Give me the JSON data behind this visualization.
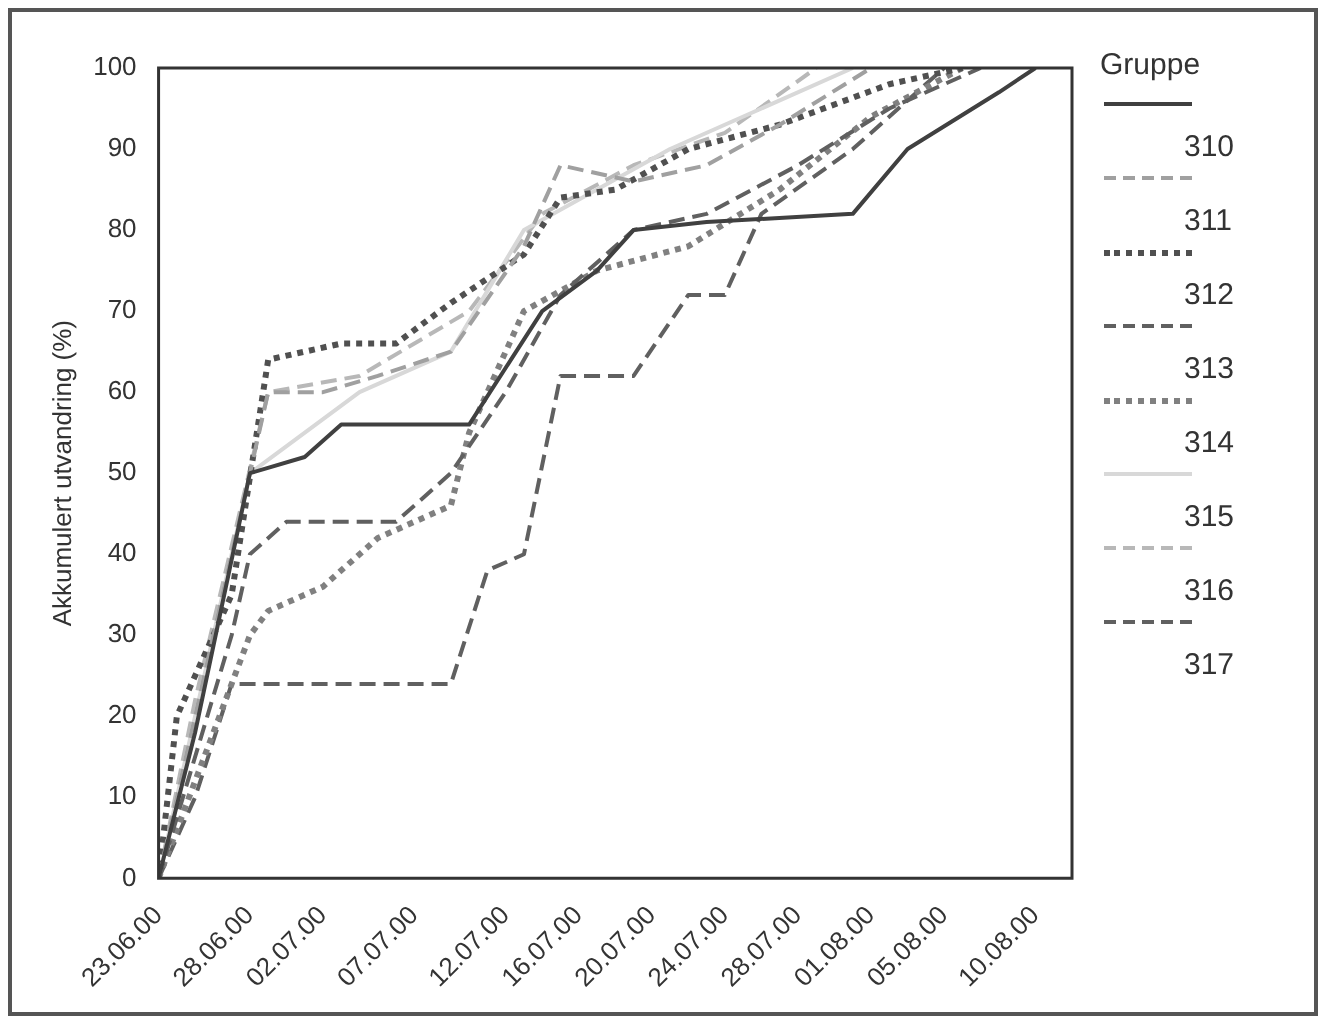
{
  "chart_data": {
    "type": "line",
    "ylabel": "Akkumulert utvandring (%)",
    "legend_title": "Gruppe",
    "legend": "right",
    "grid": false,
    "xlim": [
      "2000-06-23",
      "2000-08-12"
    ],
    "xticks": [
      {
        "value": "2000-06-23",
        "label": "23.06.00"
      },
      {
        "value": "2000-06-28",
        "label": "28.06.00"
      },
      {
        "value": "2000-07-02",
        "label": "02.07.00"
      },
      {
        "value": "2000-07-07",
        "label": "07.07.00"
      },
      {
        "value": "2000-07-12",
        "label": "12.07.00"
      },
      {
        "value": "2000-07-16",
        "label": "16.07.00"
      },
      {
        "value": "2000-07-20",
        "label": "20.07.00"
      },
      {
        "value": "2000-07-24",
        "label": "24.07.00"
      },
      {
        "value": "2000-07-28",
        "label": "28.07.00"
      },
      {
        "value": "2000-08-01",
        "label": "01.08.00"
      },
      {
        "value": "2000-08-05",
        "label": "05.08.00"
      },
      {
        "value": "2000-08-10",
        "label": "10.08.00"
      }
    ],
    "ylim": [
      0,
      100
    ],
    "yticks": [
      0,
      10,
      20,
      30,
      40,
      50,
      60,
      70,
      80,
      90,
      100
    ],
    "series": [
      {
        "name": "310",
        "color": "#404040",
        "line_style": "solid",
        "x": [
          "2000-06-23",
          "2000-06-25",
          "2000-06-28",
          "2000-07-01",
          "2000-07-03",
          "2000-07-10",
          "2000-07-14",
          "2000-07-17",
          "2000-07-19",
          "2000-07-23",
          "2000-07-31",
          "2000-08-03",
          "2000-08-08",
          "2000-08-10"
        ],
        "values": [
          0,
          18,
          50,
          52,
          56,
          56,
          70,
          75,
          80,
          81,
          82,
          90,
          97,
          100
        ]
      },
      {
        "name": "311",
        "color": "#a0a0a0",
        "line_style": "dashed",
        "x": [
          "2000-06-23",
          "2000-06-29",
          "2000-07-02",
          "2000-07-05",
          "2000-07-09",
          "2000-07-13",
          "2000-07-15",
          "2000-07-19",
          "2000-07-23",
          "2000-07-27",
          "2000-08-01"
        ],
        "values": [
          0,
          60,
          60,
          62,
          65,
          78,
          88,
          86,
          88,
          93,
          100
        ]
      },
      {
        "name": "312",
        "color": "#505050",
        "line_style": "dotted",
        "x": [
          "2000-06-23",
          "2000-06-24",
          "2000-06-27",
          "2000-06-29",
          "2000-07-03",
          "2000-07-06",
          "2000-07-09",
          "2000-07-13",
          "2000-07-15",
          "2000-07-18",
          "2000-07-22",
          "2000-07-27",
          "2000-08-02",
          "2000-08-06"
        ],
        "values": [
          0,
          20,
          35,
          64,
          66,
          66,
          71,
          77,
          84,
          85,
          90,
          93,
          98,
          100
        ]
      },
      {
        "name": "313",
        "color": "#606060",
        "line_style": "dashed",
        "x": [
          "2000-06-23",
          "2000-06-27",
          "2000-06-28",
          "2000-06-30",
          "2000-07-06",
          "2000-07-09",
          "2000-07-12",
          "2000-07-15",
          "2000-07-19",
          "2000-07-23",
          "2000-07-28",
          "2000-08-02",
          "2000-08-07"
        ],
        "values": [
          0,
          30,
          40,
          44,
          44,
          50,
          60,
          72,
          80,
          82,
          88,
          95,
          100
        ]
      },
      {
        "name": "314",
        "color": "#808080",
        "line_style": "dotted",
        "x": [
          "2000-06-23",
          "2000-06-28",
          "2000-06-29",
          "2000-07-02",
          "2000-07-05",
          "2000-07-09",
          "2000-07-10",
          "2000-07-13",
          "2000-07-17",
          "2000-07-22",
          "2000-07-27",
          "2000-08-01",
          "2000-08-06"
        ],
        "values": [
          0,
          30,
          33,
          36,
          42,
          46,
          55,
          70,
          75,
          78,
          85,
          94,
          100
        ]
      },
      {
        "name": "315",
        "color": "#d8d8d8",
        "line_style": "solid",
        "x": [
          "2000-06-23",
          "2000-06-28",
          "2000-07-04",
          "2000-07-09",
          "2000-07-13",
          "2000-07-17",
          "2000-07-21",
          "2000-07-31"
        ],
        "values": [
          0,
          50,
          60,
          65,
          80,
          85,
          90,
          100
        ]
      },
      {
        "name": "316",
        "color": "#b8b8b8",
        "line_style": "dashed",
        "x": [
          "2000-06-23",
          "2000-06-25",
          "2000-06-29",
          "2000-07-04",
          "2000-07-10",
          "2000-07-14",
          "2000-07-19",
          "2000-07-24",
          "2000-07-29"
        ],
        "values": [
          0,
          22,
          60,
          62,
          70,
          82,
          88,
          92,
          100
        ]
      },
      {
        "name": "317",
        "color": "#606060",
        "line_style": "dashed",
        "x": [
          "2000-06-23",
          "2000-06-25",
          "2000-06-27",
          "2000-07-09",
          "2000-07-11",
          "2000-07-13",
          "2000-07-15",
          "2000-07-19",
          "2000-07-22",
          "2000-07-24",
          "2000-07-26",
          "2000-07-31",
          "2000-08-05"
        ],
        "values": [
          0,
          10,
          24,
          24,
          38,
          40,
          62,
          62,
          72,
          72,
          82,
          90,
          100
        ]
      }
    ]
  }
}
